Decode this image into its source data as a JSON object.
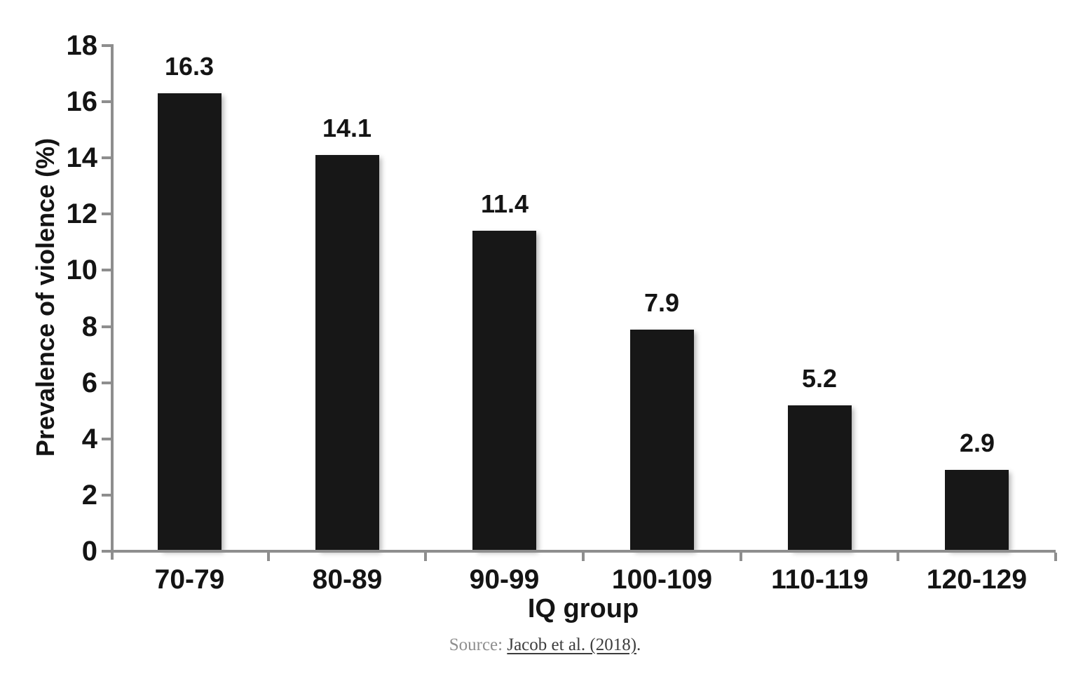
{
  "page": {
    "background_color": "#ffffff"
  },
  "chart_data": {
    "type": "bar",
    "title": "",
    "categories": [
      "70-79",
      "80-89",
      "90-99",
      "100-109",
      "110-119",
      "120-129"
    ],
    "values": [
      16.3,
      14.1,
      11.4,
      7.9,
      5.2,
      2.9
    ],
    "data_labels": [
      "16.3",
      "14.1",
      "11.4",
      "7.9",
      "5.2",
      "2.9"
    ],
    "xlabel": "IQ group",
    "ylabel": "Prevalence of violence (%)",
    "ylim": [
      0,
      18
    ],
    "yticks": [
      0,
      2,
      4,
      6,
      8,
      10,
      12,
      14,
      16,
      18
    ],
    "grid": false,
    "legend_position": "none",
    "bar_color": "#171717",
    "axis_color": "#8e8e8e",
    "label_color": "#141414"
  },
  "source": {
    "prefix": "Source: ",
    "link_text": "Jacob et al. (2018)",
    "suffix": ".",
    "prefix_color": "#8f8f8f",
    "link_color": "#3d3d3d"
  }
}
